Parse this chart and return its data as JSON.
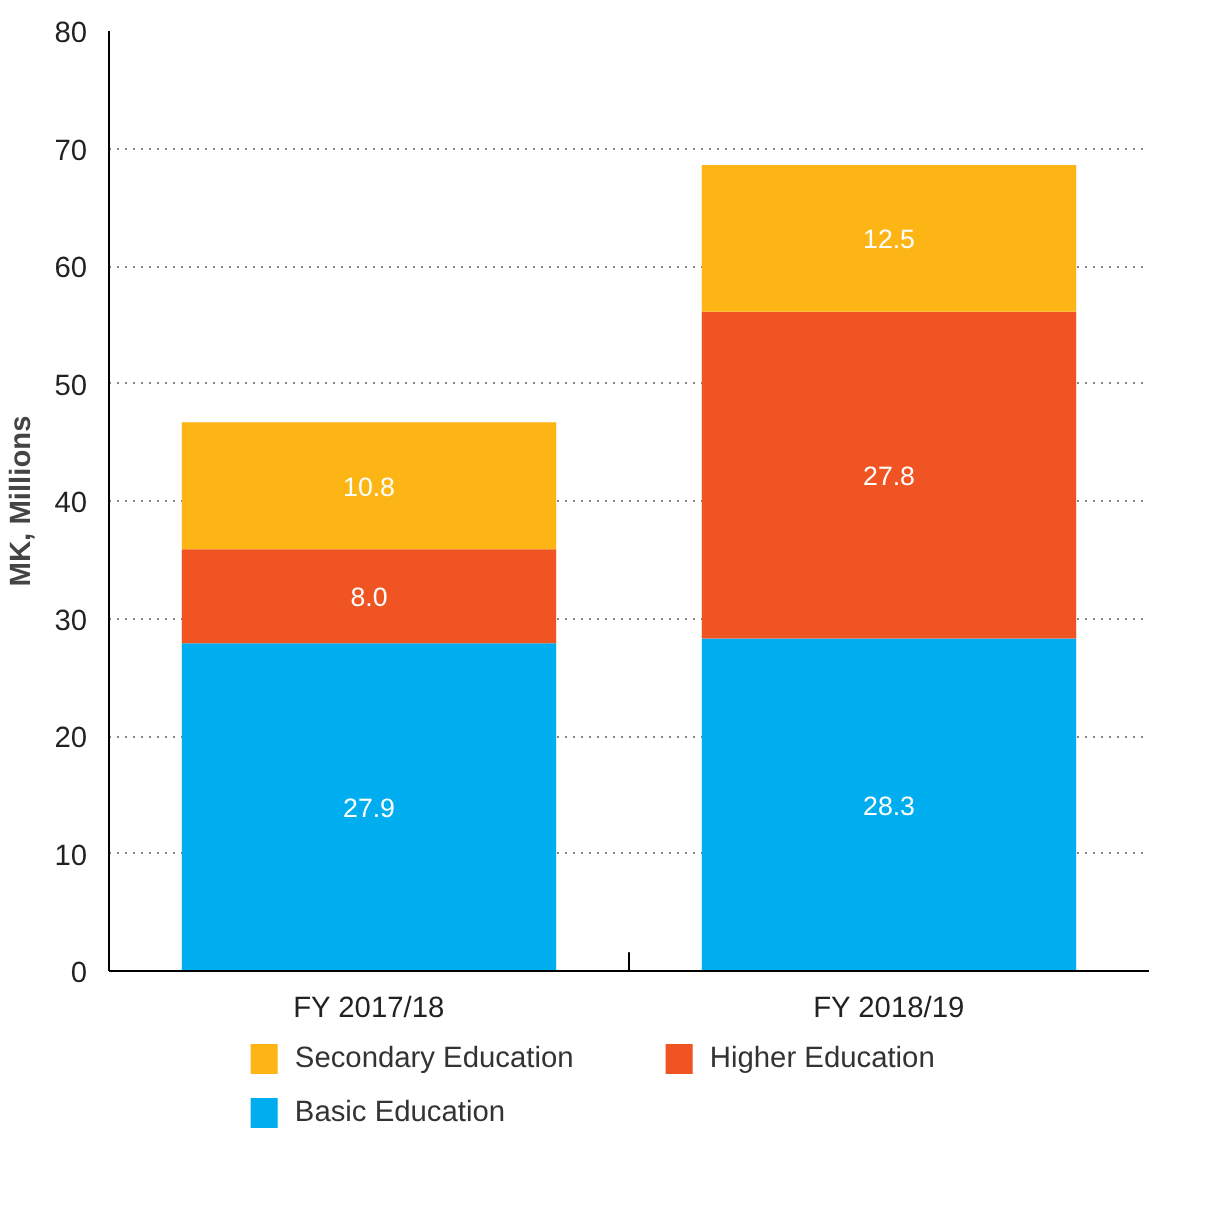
{
  "chart_data": {
    "type": "bar",
    "stacked": true,
    "ylabel": "MK, Millions",
    "categories": [
      "FY 2017/18",
      "FY 2018/19"
    ],
    "series": [
      {
        "name": "Basic Education",
        "color": "#00aeef",
        "values": [
          27.9,
          28.3
        ],
        "value_labels": [
          "27.9",
          "28.3"
        ]
      },
      {
        "name": "Higher Education",
        "color": "#f05423",
        "values": [
          8.0,
          27.8
        ],
        "value_labels": [
          "8.0",
          "27.8"
        ]
      },
      {
        "name": "Secondary Education",
        "color": "#fdb515",
        "values": [
          10.8,
          12.5
        ],
        "value_labels": [
          "10.8",
          "12.5"
        ]
      }
    ],
    "ylim": [
      0,
      80
    ],
    "yticks": [
      0,
      10,
      20,
      30,
      40,
      50,
      60,
      70,
      80
    ],
    "grid": "y",
    "legend": "bottom"
  }
}
